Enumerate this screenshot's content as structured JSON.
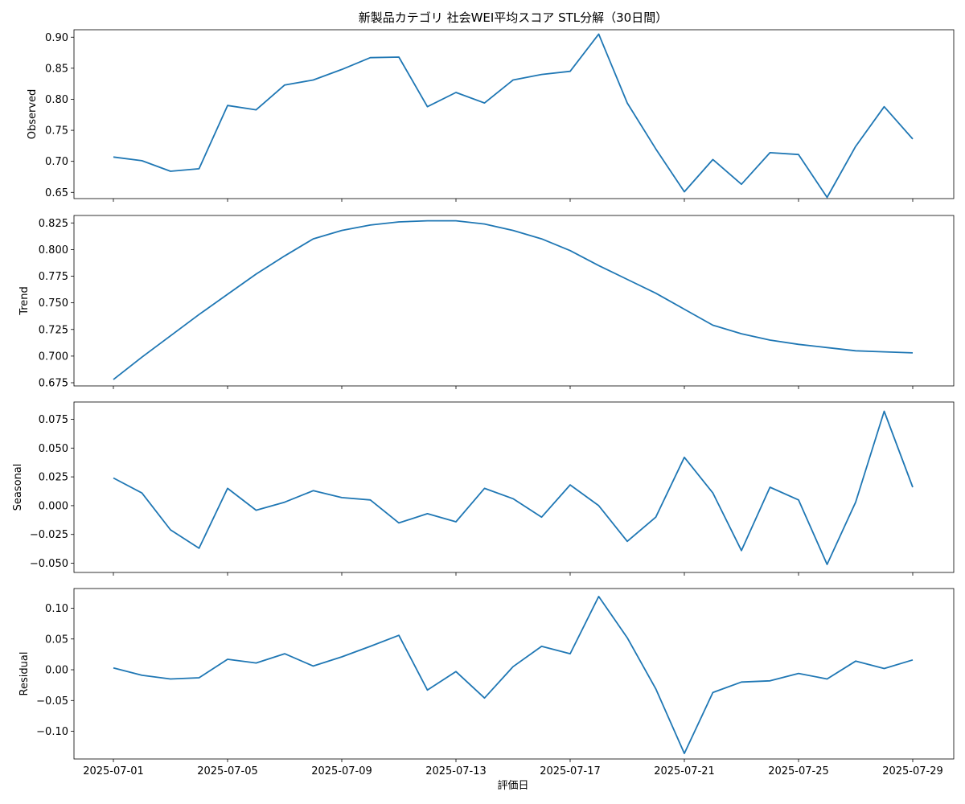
{
  "chart_data": {
    "type": "line",
    "title": "新製品カテゴリ 社会WEI平均スコア STL分解（30日間）",
    "xlabel": "評価日",
    "x": [
      "2025-07-01",
      "2025-07-02",
      "2025-07-03",
      "2025-07-04",
      "2025-07-05",
      "2025-07-06",
      "2025-07-07",
      "2025-07-08",
      "2025-07-09",
      "2025-07-10",
      "2025-07-11",
      "2025-07-12",
      "2025-07-13",
      "2025-07-14",
      "2025-07-15",
      "2025-07-16",
      "2025-07-17",
      "2025-07-18",
      "2025-07-19",
      "2025-07-20",
      "2025-07-21",
      "2025-07-22",
      "2025-07-23",
      "2025-07-24",
      "2025-07-25",
      "2025-07-26",
      "2025-07-27",
      "2025-07-28",
      "2025-07-29"
    ],
    "x_tick_labels": [
      "2025-07-01",
      "2025-07-05",
      "2025-07-09",
      "2025-07-13",
      "2025-07-17",
      "2025-07-21",
      "2025-07-25",
      "2025-07-29"
    ],
    "color": "#1f77b4",
    "grid": false,
    "panels": [
      {
        "ylabel": "Observed",
        "ylim": [
          0.64,
          0.912
        ],
        "yticks": [
          0.65,
          0.7,
          0.75,
          0.8,
          0.85,
          0.9
        ],
        "ytick_labels": [
          "0.65",
          "0.70",
          "0.75",
          "0.80",
          "0.85",
          "0.90"
        ],
        "values": [
          0.707,
          0.701,
          0.684,
          0.688,
          0.79,
          0.783,
          0.823,
          0.831,
          0.848,
          0.867,
          0.868,
          0.788,
          0.811,
          0.794,
          0.831,
          0.84,
          0.845,
          0.905,
          0.794,
          0.72,
          0.651,
          0.703,
          0.663,
          0.714,
          0.711,
          0.642,
          0.724,
          0.788,
          0.736
        ]
      },
      {
        "ylabel": "Trend",
        "ylim": [
          0.672,
          0.832
        ],
        "yticks": [
          0.675,
          0.7,
          0.725,
          0.75,
          0.775,
          0.8,
          0.825
        ],
        "ytick_labels": [
          "0.675",
          "0.700",
          "0.725",
          "0.750",
          "0.775",
          "0.800",
          "0.825"
        ],
        "values": [
          0.678,
          0.699,
          0.719,
          0.739,
          0.758,
          0.777,
          0.794,
          0.81,
          0.818,
          0.823,
          0.826,
          0.827,
          0.827,
          0.824,
          0.818,
          0.81,
          0.799,
          0.785,
          0.772,
          0.759,
          0.744,
          0.729,
          0.721,
          0.715,
          0.711,
          0.708,
          0.705,
          0.704,
          0.703
        ]
      },
      {
        "ylabel": "Seasonal",
        "ylim": [
          -0.058,
          0.09
        ],
        "yticks": [
          -0.05,
          -0.025,
          0.0,
          0.025,
          0.05,
          0.075
        ],
        "ytick_labels": [
          "−0.050",
          "−0.025",
          "0.000",
          "0.025",
          "0.050",
          "0.075"
        ],
        "values": [
          0.024,
          0.011,
          -0.021,
          -0.037,
          0.015,
          -0.004,
          0.003,
          0.013,
          0.007,
          0.005,
          -0.015,
          -0.007,
          -0.014,
          0.015,
          0.006,
          -0.01,
          0.018,
          0.0,
          -0.031,
          -0.01,
          0.042,
          0.011,
          -0.039,
          0.016,
          0.005,
          -0.051,
          0.003,
          0.082,
          0.016
        ]
      },
      {
        "ylabel": "Residual",
        "ylim": [
          -0.145,
          0.132
        ],
        "yticks": [
          -0.1,
          -0.05,
          0.0,
          0.05,
          0.1
        ],
        "ytick_labels": [
          "−0.10",
          "−0.05",
          "0.00",
          "0.05",
          "0.10"
        ],
        "values": [
          0.003,
          -0.009,
          -0.015,
          -0.013,
          0.017,
          0.011,
          0.026,
          0.006,
          0.021,
          0.038,
          0.056,
          -0.033,
          -0.003,
          -0.046,
          0.005,
          0.038,
          0.026,
          0.119,
          0.052,
          -0.031,
          -0.136,
          -0.037,
          -0.02,
          -0.018,
          -0.006,
          -0.015,
          0.014,
          0.002,
          0.016
        ]
      }
    ]
  }
}
